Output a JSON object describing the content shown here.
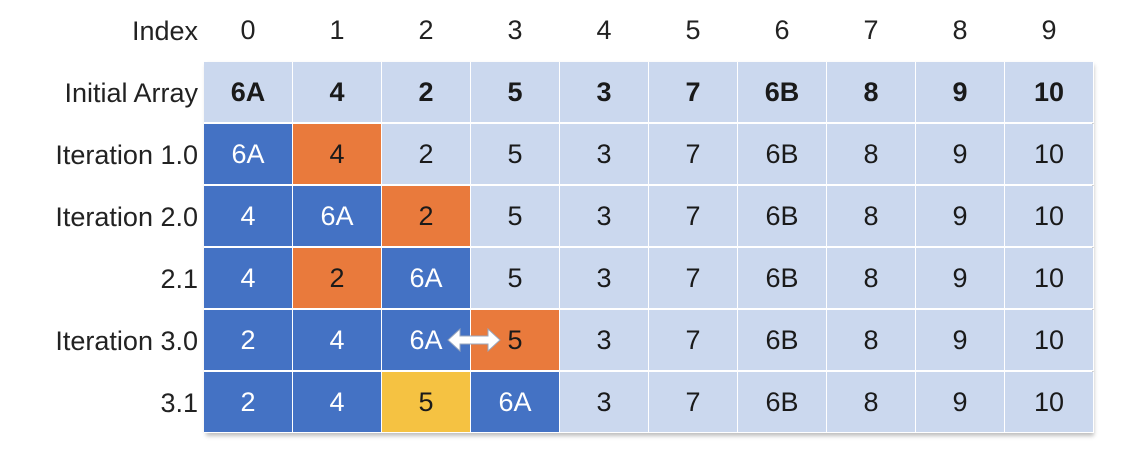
{
  "header": {
    "label": "Index",
    "indices": [
      "0",
      "1",
      "2",
      "3",
      "4",
      "5",
      "6",
      "7",
      "8",
      "9"
    ]
  },
  "rows": [
    {
      "label": "Initial Array",
      "cells": [
        {
          "value": "6A",
          "state": "plain",
          "bold": true
        },
        {
          "value": "4",
          "state": "plain",
          "bold": true
        },
        {
          "value": "2",
          "state": "plain",
          "bold": true
        },
        {
          "value": "5",
          "state": "plain",
          "bold": true
        },
        {
          "value": "3",
          "state": "plain",
          "bold": true
        },
        {
          "value": "7",
          "state": "plain",
          "bold": true
        },
        {
          "value": "6B",
          "state": "plain",
          "bold": true
        },
        {
          "value": "8",
          "state": "plain",
          "bold": true
        },
        {
          "value": "9",
          "state": "plain",
          "bold": true
        },
        {
          "value": "10",
          "state": "plain",
          "bold": true
        }
      ]
    },
    {
      "label": "Iteration 1.0",
      "cells": [
        {
          "value": "6A",
          "state": "sorted"
        },
        {
          "value": "4",
          "state": "current"
        },
        {
          "value": "2",
          "state": "plain"
        },
        {
          "value": "5",
          "state": "plain"
        },
        {
          "value": "3",
          "state": "plain"
        },
        {
          "value": "7",
          "state": "plain"
        },
        {
          "value": "6B",
          "state": "plain"
        },
        {
          "value": "8",
          "state": "plain"
        },
        {
          "value": "9",
          "state": "plain"
        },
        {
          "value": "10",
          "state": "plain"
        }
      ]
    },
    {
      "label": "Iteration 2.0",
      "cells": [
        {
          "value": "4",
          "state": "sorted"
        },
        {
          "value": "6A",
          "state": "sorted"
        },
        {
          "value": "2",
          "state": "current"
        },
        {
          "value": "5",
          "state": "plain"
        },
        {
          "value": "3",
          "state": "plain"
        },
        {
          "value": "7",
          "state": "plain"
        },
        {
          "value": "6B",
          "state": "plain"
        },
        {
          "value": "8",
          "state": "plain"
        },
        {
          "value": "9",
          "state": "plain"
        },
        {
          "value": "10",
          "state": "plain"
        }
      ]
    },
    {
      "label": "2.1",
      "cells": [
        {
          "value": "4",
          "state": "sorted"
        },
        {
          "value": "2",
          "state": "current"
        },
        {
          "value": "6A",
          "state": "sorted"
        },
        {
          "value": "5",
          "state": "plain"
        },
        {
          "value": "3",
          "state": "plain"
        },
        {
          "value": "7",
          "state": "plain"
        },
        {
          "value": "6B",
          "state": "plain"
        },
        {
          "value": "8",
          "state": "plain"
        },
        {
          "value": "9",
          "state": "plain"
        },
        {
          "value": "10",
          "state": "plain"
        }
      ]
    },
    {
      "label": "Iteration 3.0",
      "cells": [
        {
          "value": "2",
          "state": "sorted"
        },
        {
          "value": "4",
          "state": "sorted"
        },
        {
          "value": "6A",
          "state": "sorted"
        },
        {
          "value": "5",
          "state": "current"
        },
        {
          "value": "3",
          "state": "plain"
        },
        {
          "value": "7",
          "state": "plain"
        },
        {
          "value": "6B",
          "state": "plain"
        },
        {
          "value": "8",
          "state": "plain"
        },
        {
          "value": "9",
          "state": "plain"
        },
        {
          "value": "10",
          "state": "plain"
        }
      ]
    },
    {
      "label": "3.1",
      "cells": [
        {
          "value": "2",
          "state": "sorted"
        },
        {
          "value": "4",
          "state": "sorted"
        },
        {
          "value": "5",
          "state": "placed"
        },
        {
          "value": "6A",
          "state": "sorted"
        },
        {
          "value": "3",
          "state": "plain"
        },
        {
          "value": "7",
          "state": "plain"
        },
        {
          "value": "6B",
          "state": "plain"
        },
        {
          "value": "8",
          "state": "plain"
        },
        {
          "value": "9",
          "state": "plain"
        },
        {
          "value": "10",
          "state": "plain"
        }
      ]
    }
  ],
  "swap_indicator": {
    "row": "Iteration 3.0",
    "between_indices": [
      "2",
      "3"
    ],
    "icon": "double-arrow-icon"
  },
  "colors": {
    "plain": "#cbd8ee",
    "sorted": "#4472c4",
    "current": "#e97a3c",
    "placed": "#f5c242"
  }
}
